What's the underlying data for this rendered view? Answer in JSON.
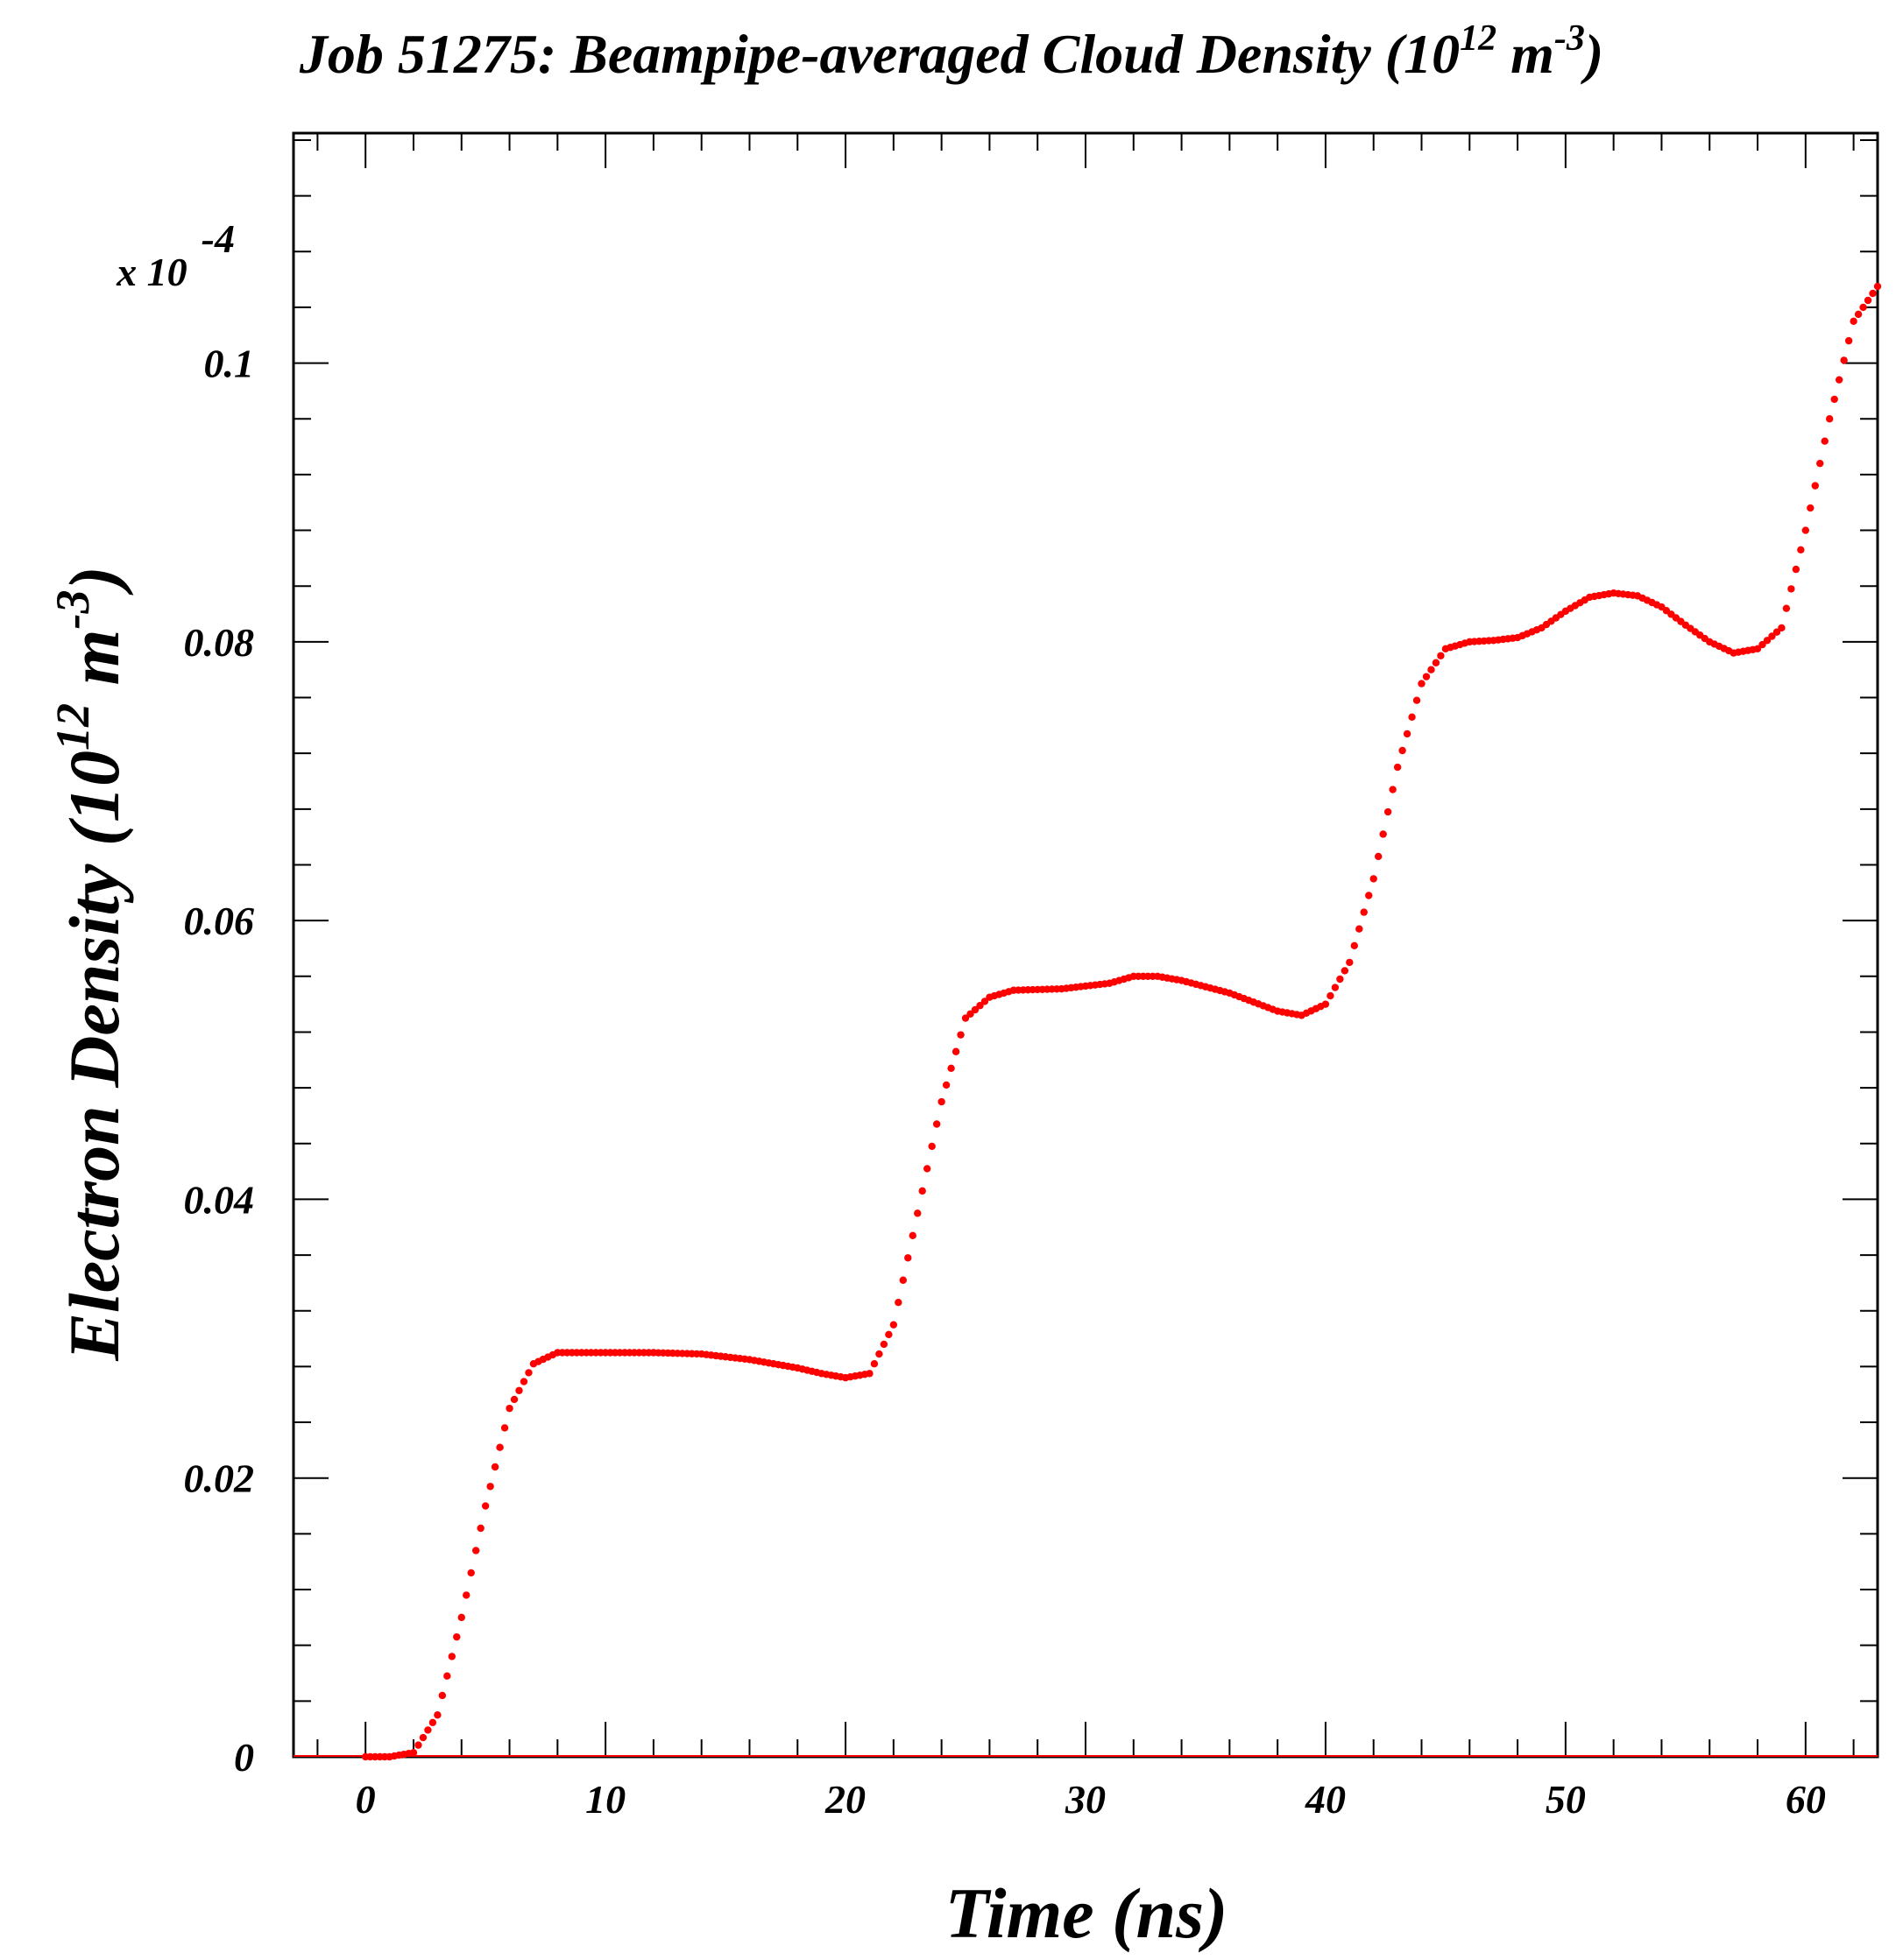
{
  "chart_data": {
    "type": "scatter",
    "title": "Job 51275: Beampipe-averaged Cloud Density (10^12 m^-3)",
    "title_parts": {
      "base": "Job 51275: Beampipe-averaged Cloud Density (10",
      "sup1": "12",
      "mid": " m",
      "sup2": "-3",
      "end": ")"
    },
    "xlabel": "Time (ns)",
    "ylabel_parts": {
      "base": "Electron Density (10",
      "sup1": "12",
      "mid": " m",
      "sup2": "-3",
      "end": ")"
    },
    "y_multiplier": {
      "base": "x 10",
      "exp": "-4"
    },
    "xlim": [
      -3,
      63
    ],
    "ylim": [
      0,
      0.1165
    ],
    "x_ticks": [
      0,
      10,
      20,
      30,
      40,
      50,
      60
    ],
    "y_ticks": [
      0,
      0.02,
      0.04,
      0.06,
      0.08,
      0.1
    ],
    "y_tick_labels": [
      "0",
      "0.02",
      "0.04",
      "0.06",
      "0.08",
      "0.1"
    ],
    "grid": false,
    "marker_color": "#ff0000",
    "series": [
      {
        "points": [
          [
            0,
            0
          ],
          [
            1,
            0
          ],
          [
            2,
            0.0003
          ],
          [
            3,
            0.003
          ],
          [
            4,
            0.01
          ],
          [
            5,
            0.018
          ],
          [
            6,
            0.025
          ],
          [
            7,
            0.0282
          ],
          [
            8,
            0.029
          ],
          [
            10,
            0.029
          ],
          [
            12,
            0.029
          ],
          [
            14,
            0.0289
          ],
          [
            16,
            0.0285
          ],
          [
            18,
            0.0279
          ],
          [
            19,
            0.0275
          ],
          [
            20,
            0.0272
          ],
          [
            21,
            0.0275
          ],
          [
            22,
            0.031
          ],
          [
            23,
            0.039
          ],
          [
            24,
            0.047
          ],
          [
            25,
            0.053
          ],
          [
            26,
            0.0545
          ],
          [
            27,
            0.055
          ],
          [
            29,
            0.0551
          ],
          [
            31,
            0.0555
          ],
          [
            32,
            0.056
          ],
          [
            33,
            0.056
          ],
          [
            34,
            0.0557
          ],
          [
            36,
            0.0548
          ],
          [
            38,
            0.0535
          ],
          [
            39,
            0.0532
          ],
          [
            40,
            0.054
          ],
          [
            41,
            0.057
          ],
          [
            42,
            0.063
          ],
          [
            43,
            0.071
          ],
          [
            44,
            0.077
          ],
          [
            45,
            0.0795
          ],
          [
            46,
            0.08
          ],
          [
            47,
            0.0801
          ],
          [
            48,
            0.0803
          ],
          [
            49,
            0.081
          ],
          [
            50,
            0.0822
          ],
          [
            51,
            0.0832
          ],
          [
            52,
            0.0835
          ],
          [
            53,
            0.0833
          ],
          [
            54,
            0.0825
          ],
          [
            55,
            0.0812
          ],
          [
            56,
            0.08
          ],
          [
            57,
            0.0792
          ],
          [
            58,
            0.0795
          ],
          [
            59,
            0.081
          ],
          [
            60,
            0.088
          ],
          [
            61,
            0.096
          ],
          [
            62,
            0.103
          ],
          [
            63,
            0.1055
          ]
        ]
      }
    ]
  }
}
